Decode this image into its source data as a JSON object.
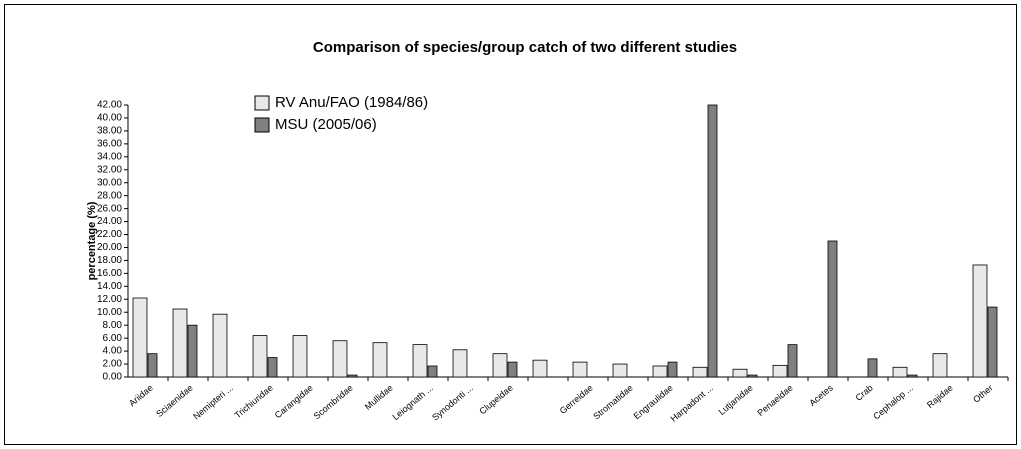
{
  "chart_data": {
    "type": "bar",
    "title": "Comparison of species/group catch of two different studies",
    "ylabel": "percentage (%)",
    "categories": [
      "Ariidae",
      "Sciaenidae",
      "Nemipteri ...",
      "Trichiuridae",
      "Carangidae",
      "Scombridae",
      "Mullidae",
      "Leiognath ...",
      "Synodonti ...",
      "Clupeidae",
      null,
      "Gerreidae",
      "Stromatidae",
      "Engraulidae",
      "Harpadont ...",
      "Lutjanidae",
      "Penaeidae",
      "Acetes",
      "Crab",
      "Cephalop ...",
      "Rajidae",
      "Other"
    ],
    "series": [
      {
        "name": "RV Anu/FAO (1984/86)",
        "color": "#e8e8e8",
        "values": [
          12.2,
          10.5,
          9.7,
          6.4,
          6.4,
          5.6,
          5.3,
          5.0,
          4.2,
          3.6,
          2.6,
          2.3,
          2.0,
          1.7,
          1.5,
          1.2,
          1.8,
          0,
          0,
          1.5,
          3.6,
          17.3
        ]
      },
      {
        "name": "MSU (2005/06)",
        "color": "#808080",
        "values": [
          3.6,
          8.0,
          0,
          3.0,
          0,
          0.3,
          0,
          1.7,
          0,
          2.3,
          0,
          0,
          0,
          2.3,
          42.0,
          0.3,
          5.0,
          21.0,
          2.8,
          0.3,
          0,
          10.8
        ]
      }
    ],
    "ylim": [
      0,
      42
    ],
    "yticks": [
      {
        "value": 0,
        "label": "0.00"
      },
      {
        "value": 2,
        "label": "2.00"
      },
      {
        "value": 4,
        "label": "4.00"
      },
      {
        "value": 6,
        "label": "6.00"
      },
      {
        "value": 8,
        "label": "8.00"
      },
      {
        "value": 10,
        "label": "10.00"
      },
      {
        "value": 12,
        "label": "12.00"
      },
      {
        "value": 14,
        "label": "14.00"
      },
      {
        "value": 16,
        "label": "16.00"
      },
      {
        "value": 18,
        "label": "18.00"
      },
      {
        "value": 20,
        "label": "20.00"
      },
      {
        "value": 22,
        "label": "22.00"
      },
      {
        "value": 24,
        "label": "24.00"
      },
      {
        "value": 26,
        "label": "26.00"
      },
      {
        "value": 28,
        "label": "28.00"
      },
      {
        "value": 30,
        "label": "30.00"
      },
      {
        "value": 32,
        "label": "32.00"
      },
      {
        "value": 34,
        "label": "34.00"
      },
      {
        "value": 36,
        "label": "36.00"
      },
      {
        "value": 38,
        "label": "38.00"
      },
      {
        "value": 40,
        "label": "40.00"
      },
      {
        "value": 42,
        "label": "42.00"
      }
    ],
    "grid": false
  }
}
